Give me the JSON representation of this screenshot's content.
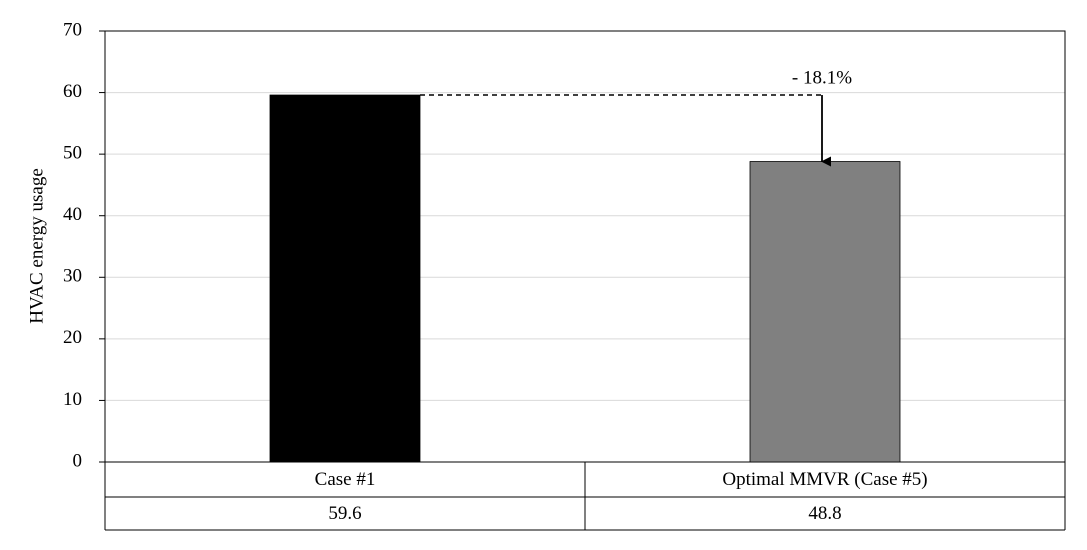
{
  "chart_data": {
    "type": "bar",
    "y_label": "HVAC energy usage",
    "categories": [
      "Case #1",
      "Optimal MMVR (Case #5)"
    ],
    "values": [
      59.6,
      48.8
    ],
    "colors": [
      "#000000",
      "#808080"
    ],
    "annotation": "- 18.1%",
    "ylim": [
      0,
      70
    ],
    "yticks": [
      0,
      10,
      20,
      30,
      40,
      50,
      60,
      70
    ],
    "grid": true
  }
}
